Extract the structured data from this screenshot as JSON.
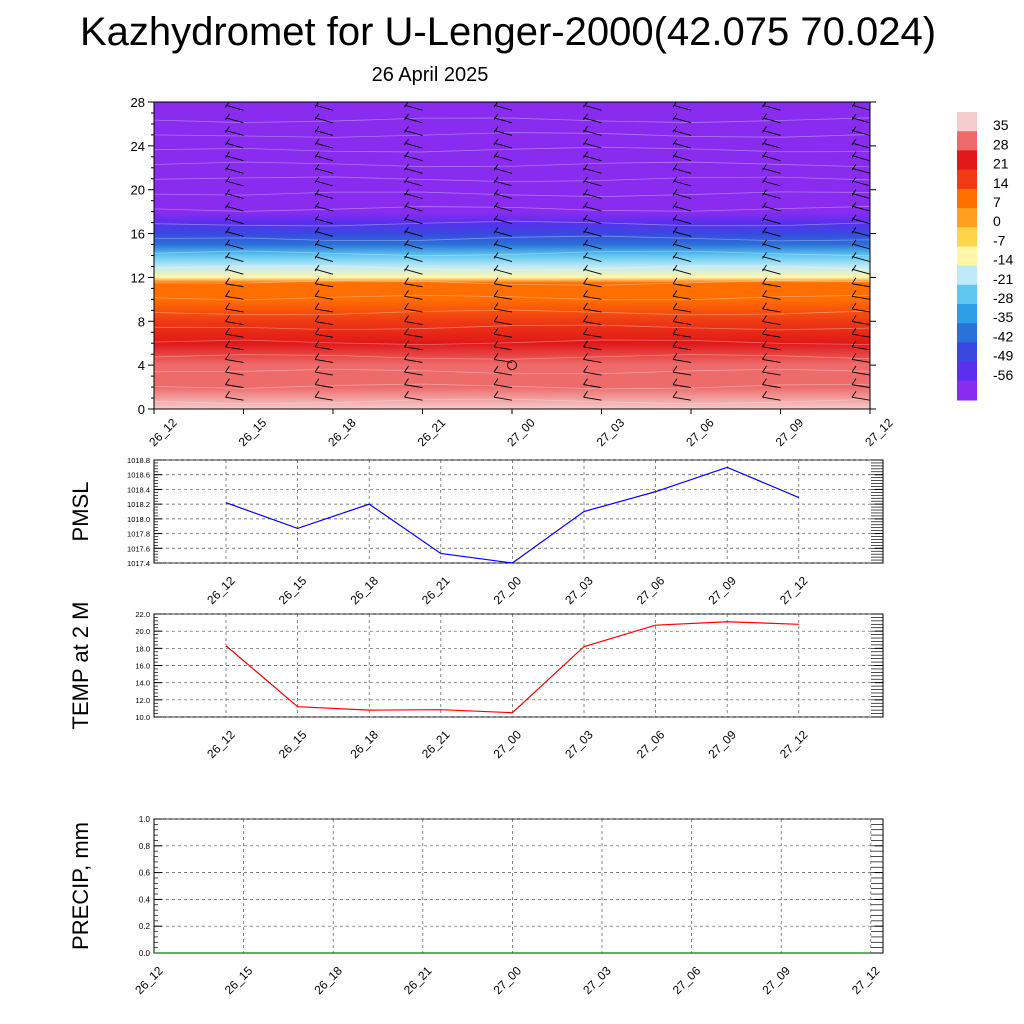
{
  "header": {
    "title": "Kazhydromet for U-Lenger-2000(42.075 70.024)",
    "date": "26 April 2025"
  },
  "colorbar": {
    "labels": [
      "35",
      "28",
      "21",
      "14",
      "7",
      "0",
      "-7",
      "-14",
      "-21",
      "-28",
      "-35",
      "-42",
      "-49",
      "-56"
    ],
    "colors": [
      "#f4cccc",
      "#ee6b6b",
      "#e01818",
      "#ef3a14",
      "#ff6e00",
      "#ffa020",
      "#ffd54a",
      "#fff6a8",
      "#bfe9f6",
      "#5ec8f0",
      "#2f9ee8",
      "#2a72d8",
      "#3a48e0",
      "#5a30ee",
      "#8a2bf0"
    ]
  },
  "chart_data": [
    {
      "type": "heatmap",
      "name": "temperature-cross-section",
      "x_categories": [
        "26_12",
        "26_15",
        "26_18",
        "26_21",
        "27_00",
        "27_03",
        "27_06",
        "27_09",
        "27_12"
      ],
      "y_ticks": [
        0,
        4,
        8,
        12,
        16,
        20,
        24,
        28
      ],
      "ylim": [
        0,
        28
      ],
      "levels": [
        0,
        2,
        4,
        6,
        8,
        10,
        11.5,
        12,
        13,
        14,
        15,
        16,
        17,
        18,
        19,
        20,
        21,
        22,
        24,
        26,
        28
      ],
      "level_values": [
        32,
        28,
        24,
        20,
        15,
        10,
        5,
        -8,
        -16,
        -24,
        -32,
        -40,
        -48,
        -55,
        -58,
        -58,
        -60,
        -58,
        -56,
        -56,
        -56
      ],
      "scale_min": -56,
      "scale_max": 35,
      "grid": false
    },
    {
      "type": "line",
      "name": "PMSL",
      "ylabel": "PMSL",
      "categories": [
        "26_12",
        "26_15",
        "26_18",
        "26_21",
        "27_00",
        "27_03",
        "27_06",
        "27_09",
        "27_12"
      ],
      "values": [
        1018.22,
        1017.87,
        1018.2,
        1017.53,
        1017.4,
        1018.1,
        1018.37,
        1018.7,
        1018.29
      ],
      "ylim": [
        1017.4,
        1018.8
      ],
      "y_ticks": [
        "1017.4",
        "1017.6",
        "1017.8",
        "1018.0",
        "1018.2",
        "1018.4",
        "1018.6",
        "1018.8"
      ],
      "color": "#0000ff",
      "grid": true
    },
    {
      "type": "line",
      "name": "TEMP at 2 M",
      "ylabel": "TEMP at 2 M",
      "categories": [
        "26_12",
        "26_15",
        "26_18",
        "26_21",
        "27_00",
        "27_03",
        "27_06",
        "27_09",
        "27_12"
      ],
      "values": [
        18.3,
        11.2,
        10.8,
        10.85,
        10.5,
        18.2,
        20.7,
        21.1,
        20.8
      ],
      "ylim": [
        10,
        22
      ],
      "y_ticks": [
        "10.0",
        "12.0",
        "14.0",
        "16.0",
        "18.0",
        "20.0",
        "22.0"
      ],
      "color": "#ff0000",
      "grid": true
    },
    {
      "type": "line",
      "name": "PRECIP",
      "ylabel": "PRECIP, mm",
      "categories": [
        "26_12",
        "26_15",
        "26_18",
        "26_21",
        "27_00",
        "27_03",
        "27_06",
        "27_09",
        "27_12"
      ],
      "values": [
        0,
        0,
        0,
        0,
        0,
        0,
        0,
        0,
        0
      ],
      "ylim": [
        0,
        1
      ],
      "y_ticks": [
        "0.0",
        "0.2",
        "0.4",
        "0.6",
        "0.8",
        "1.0"
      ],
      "color": "#008000",
      "grid": true
    }
  ]
}
